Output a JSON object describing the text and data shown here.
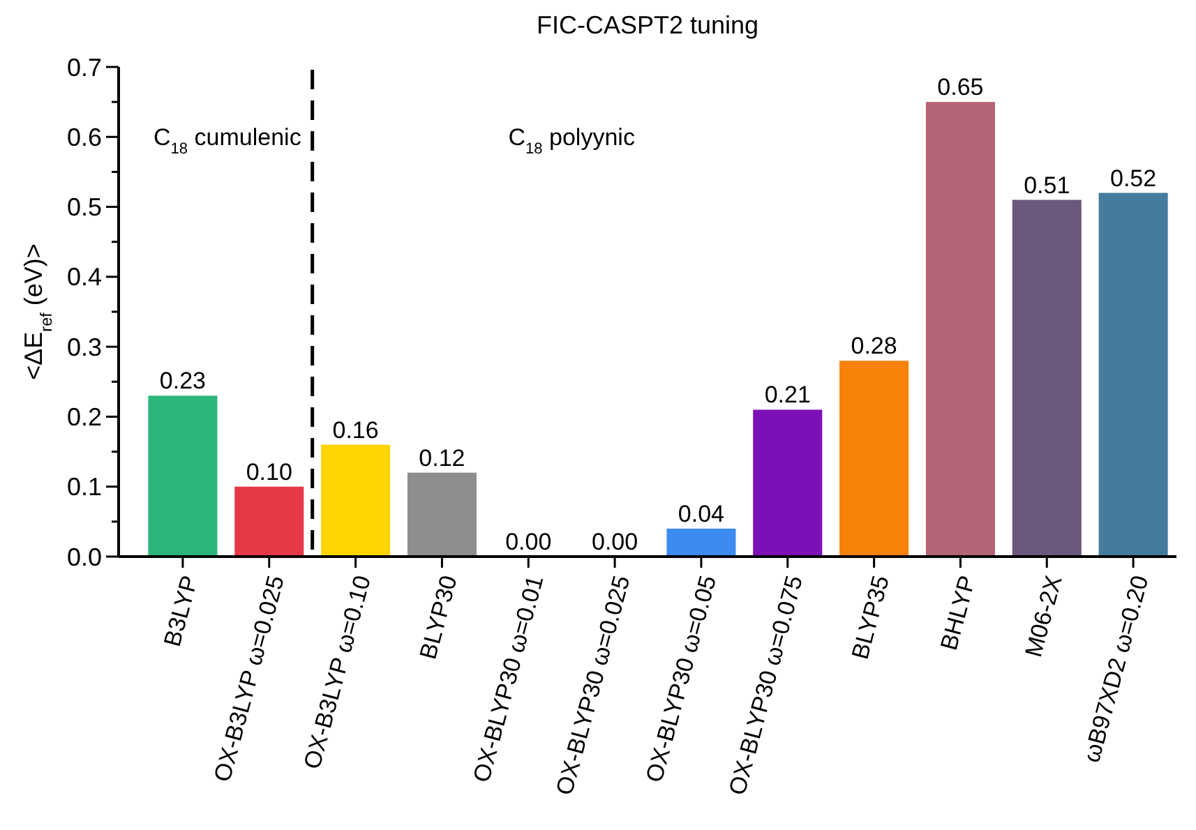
{
  "chart_data": {
    "type": "bar",
    "title": "FIC-CASPT2 tuning",
    "ylabel": "<ΔE$_{ref}$ (eV)>",
    "categories": [
      "B3LYP",
      "OX-B3LYP ω=0.025",
      "OX-B3LYP ω=0.10",
      "BLYP30",
      "OX-BLYP30 ω=0.01",
      "OX-BLYP30 ω=0.025",
      "OX-BLYP30 ω=0.05",
      "OX-BLYP30 ω=0.075",
      "BLYP35",
      "BHLYP",
      "M06-2X",
      "ωB97XD2 ω=0.20"
    ],
    "values": [
      0.23,
      0.1,
      0.16,
      0.12,
      0.0,
      0.0,
      0.04,
      0.21,
      0.28,
      0.65,
      0.51,
      0.52
    ],
    "value_labels": [
      "0.23",
      "0.10",
      "0.16",
      "0.12",
      "0.00",
      "0.00",
      "0.04",
      "0.21",
      "0.28",
      "0.65",
      "0.51",
      "0.52"
    ],
    "colors": [
      "#2bb57a",
      "#e63946",
      "#ffd400",
      "#8c8e90",
      "#3d8bf0",
      "#3d8bf0",
      "#3d8bf0",
      "#7a10b5",
      "#f7820a",
      "#b36576",
      "#6c587a",
      "#457b9d"
    ],
    "ylim": [
      0,
      0.7
    ],
    "yticks": [
      {
        "value": 0,
        "label": "0.0"
      },
      {
        "value": 0.05,
        "label": null
      },
      0.1,
      {
        "value": 0.15,
        "label": null
      },
      0.2,
      {
        "value": 0.25,
        "label": null
      },
      0.3,
      {
        "value": 0.35,
        "label": null
      },
      0.4,
      {
        "value": 0.45,
        "label": null
      },
      0.5,
      {
        "value": 0.55,
        "label": null
      },
      0.6,
      {
        "value": 0.65,
        "label": null
      },
      0.7
    ],
    "annotations": [
      "C$_{18}$ cumulenic",
      "C$_{18}$ polyynic"
    ],
    "grid": false
  }
}
